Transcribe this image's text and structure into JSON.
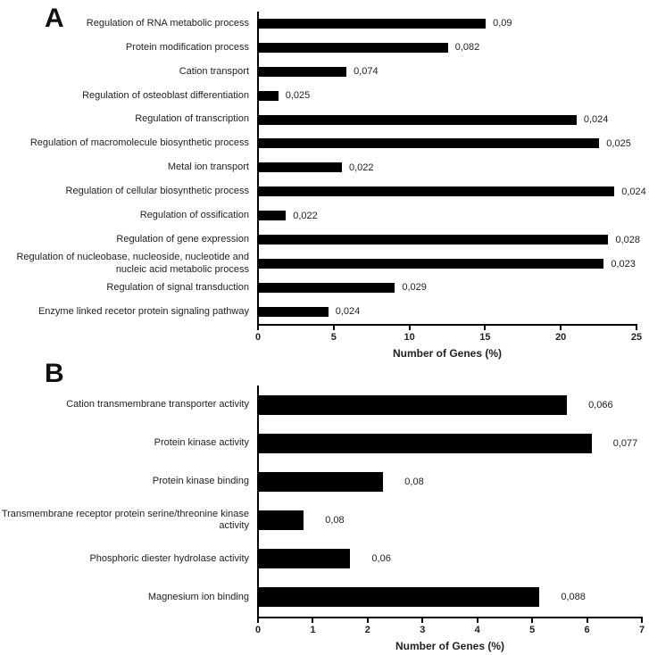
{
  "figure": {
    "panels": [
      "A",
      "B"
    ]
  },
  "chart_data": [
    {
      "panel": "A",
      "type": "bar",
      "orientation": "horizontal",
      "title": "",
      "xlabel": "Number of Genes (%)",
      "ylabel": "",
      "xlim": [
        0,
        25
      ],
      "xticks": [
        0,
        5,
        10,
        15,
        20,
        25
      ],
      "grid": false,
      "legend": false,
      "bar_color": "#000000",
      "categories": [
        "Regulation of RNA metabolic process",
        "Protein modification process",
        "Cation transport",
        "Regulation of osteoblast differentiation",
        "Regulation of transcription",
        "Regulation of macromolecule biosynthetic process",
        "Metal ion transport",
        "Regulation of cellular biosynthetic process",
        "Regulation of ossification",
        "Regulation of gene expression",
        "Regulation of nucleobase, nucleoside, nucleotide and nucleic acid metabolic process",
        "Regulation of signal transduction",
        "Enzyme linked recetor protein signaling pathway"
      ],
      "values": [
        15.1,
        12.6,
        5.9,
        1.4,
        21.1,
        22.6,
        5.6,
        23.6,
        1.9,
        23.2,
        22.9,
        9.1,
        4.7
      ],
      "value_labels": [
        "0,09",
        "0,082",
        "0,074",
        "0,025",
        "0,024",
        "0,025",
        "0,022",
        "0,024",
        "0,022",
        "0,028",
        "0,023",
        "0,029",
        "0,024"
      ]
    },
    {
      "panel": "B",
      "type": "bar",
      "orientation": "horizontal",
      "title": "",
      "xlabel": "Number of Genes (%)",
      "ylabel": "",
      "xlim": [
        0,
        7
      ],
      "xticks": [
        0,
        1,
        2,
        3,
        4,
        5,
        6,
        7
      ],
      "grid": false,
      "legend": false,
      "bar_color": "#000000",
      "categories": [
        "Cation transmembrane transporter activity",
        "Protein kinase activity",
        "Protein kinase binding",
        "Transmembrane receptor protein serine/threonine kinase activity",
        "Phosphoric diester hydrolase activity",
        "Magnesium ion binding"
      ],
      "values": [
        5.65,
        6.1,
        2.3,
        0.85,
        1.7,
        5.15
      ],
      "value_labels": [
        "0,066",
        "0,077",
        "0,08",
        "0,08",
        "0,06",
        "0,088"
      ]
    }
  ]
}
